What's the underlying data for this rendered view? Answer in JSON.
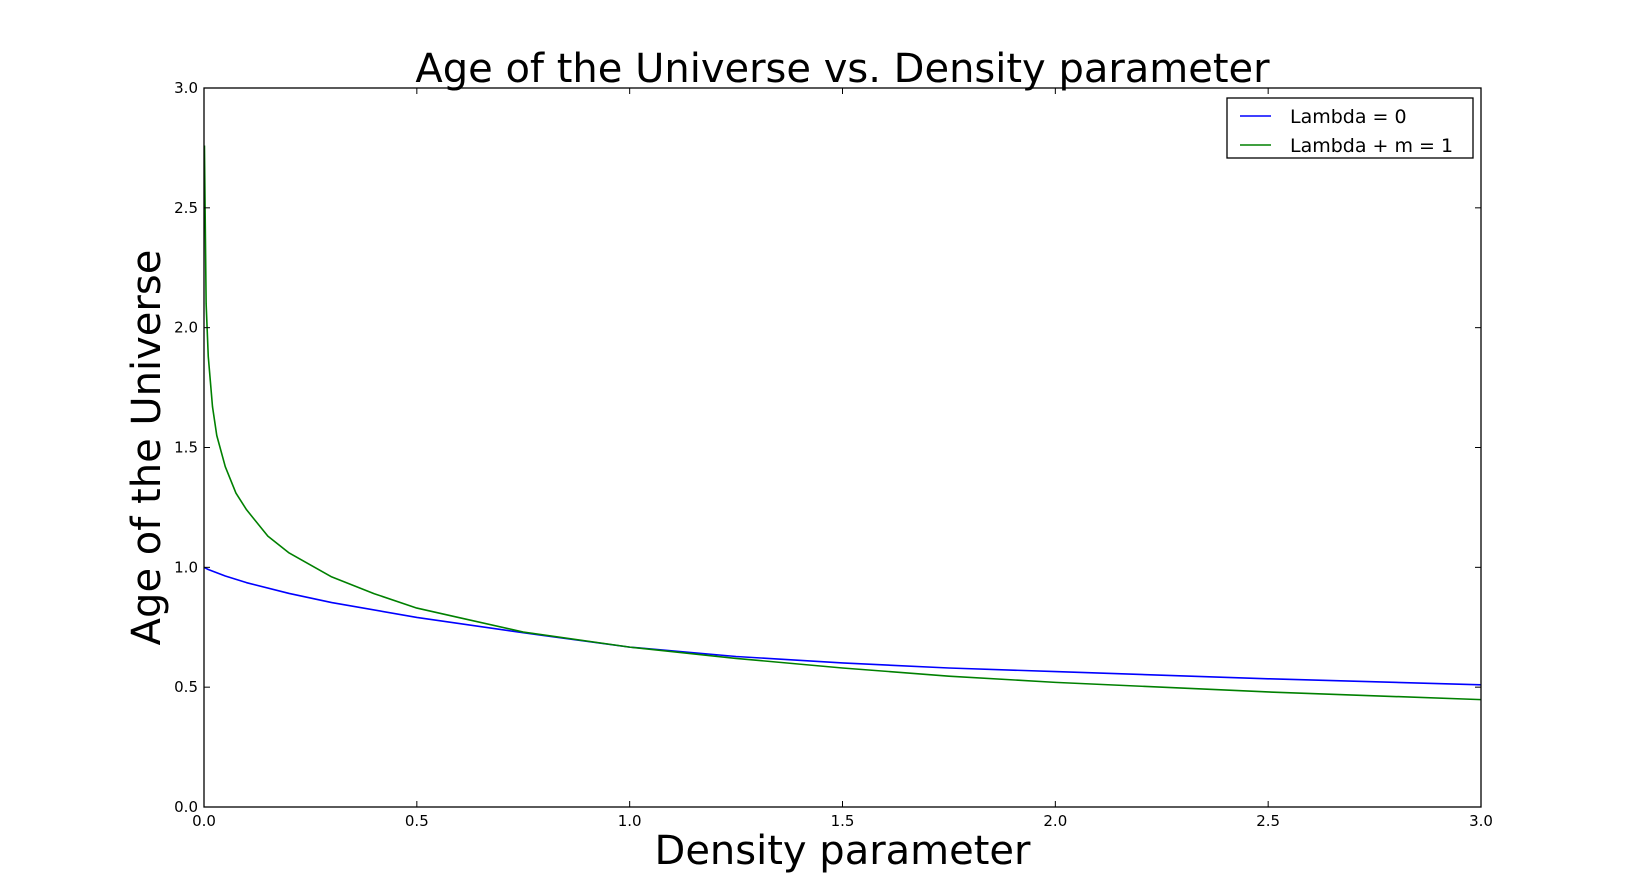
{
  "chart_data": {
    "type": "line",
    "title": "Age of the Universe vs. Density parameter",
    "xlabel": "Density parameter",
    "ylabel": "Age of the Universe",
    "xlim": [
      0.0,
      3.0
    ],
    "ylim": [
      0.0,
      3.0
    ],
    "xticks": [
      "0.0",
      "0.5",
      "1.0",
      "1.5",
      "2.0",
      "2.5",
      "3.0"
    ],
    "yticks": [
      "0.0",
      "0.5",
      "1.0",
      "1.5",
      "2.0",
      "2.5",
      "3.0"
    ],
    "grid": false,
    "legend_position": "top-right",
    "series": [
      {
        "name": "Lambda = 0",
        "color": "#0000ff",
        "x": [
          0.0,
          0.01,
          0.02,
          0.05,
          0.1,
          0.2,
          0.3,
          0.5,
          0.75,
          1.0,
          1.25,
          1.5,
          1.75,
          2.0,
          2.5,
          3.0
        ],
        "y": [
          1.0,
          0.991,
          0.984,
          0.964,
          0.936,
          0.891,
          0.853,
          0.791,
          0.727,
          0.667,
          0.628,
          0.601,
          0.58,
          0.565,
          0.535,
          0.51
        ]
      },
      {
        "name": "Lambda + m = 1",
        "color": "#008000",
        "x": [
          0.001,
          0.005,
          0.01,
          0.02,
          0.03,
          0.05,
          0.075,
          0.1,
          0.15,
          0.2,
          0.3,
          0.4,
          0.5,
          0.6,
          0.75,
          1.0,
          1.25,
          1.5,
          1.75,
          2.0,
          2.5,
          3.0
        ],
        "y": [
          2.76,
          2.1,
          1.88,
          1.67,
          1.55,
          1.42,
          1.31,
          1.24,
          1.13,
          1.06,
          0.96,
          0.89,
          0.83,
          0.79,
          0.73,
          0.667,
          0.62,
          0.58,
          0.546,
          0.52,
          0.48,
          0.448
        ]
      }
    ]
  }
}
